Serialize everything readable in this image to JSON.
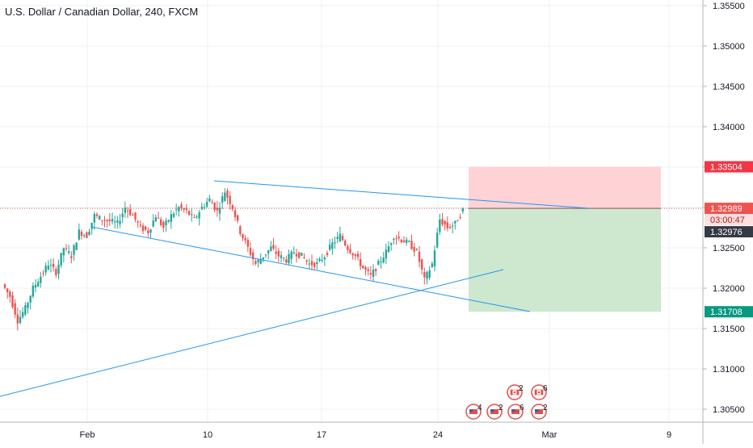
{
  "header": {
    "symbol_title": "U.S. Dollar / Canadian Dollar, 240, FXCM"
  },
  "colors": {
    "grid": "#eef0f3",
    "bull": "#26a69a",
    "bear": "#ef5350",
    "trendline": "#2196f3",
    "stop_zone": "#ffcdd2",
    "target_zone": "#c8e6c9",
    "stop_label": "#f23645",
    "target_label": "#089981",
    "price_label": "#ef5350",
    "last_label": "#363a45"
  },
  "chart_data": {
    "type": "candlestick",
    "title": "U.S. Dollar / Canadian Dollar, 240, FXCM",
    "x_ticks": [
      "Feb",
      "10",
      "17",
      "24",
      "Mar",
      "9"
    ],
    "y_ticks": [
      "1.35500",
      "1.35000",
      "1.34500",
      "1.34000",
      "1.33500",
      "1.33000",
      "1.32500",
      "1.32000",
      "1.31500",
      "1.31000",
      "1.30500"
    ],
    "ylim": [
      1.3032,
      1.356
    ],
    "grid": true,
    "price_labels": {
      "stop": "1.33504",
      "current": "1.32989",
      "countdown": "03:00:47",
      "last": "1.32976",
      "target": "1.31708"
    },
    "position": {
      "type": "short",
      "entry": 1.32989,
      "stop": 1.33504,
      "target": 1.31708
    },
    "price_path": [
      1.3205,
      1.319,
      1.316,
      1.3175,
      1.32,
      1.3215,
      1.323,
      1.322,
      1.325,
      1.324,
      1.327,
      1.3265,
      1.329,
      1.3285,
      1.3283,
      1.328,
      1.33,
      1.329,
      1.3275,
      1.327,
      1.329,
      1.3275,
      1.329,
      1.33,
      1.3295,
      1.3285,
      1.33,
      1.331,
      1.3295,
      1.332,
      1.33,
      1.327,
      1.325,
      1.323,
      1.324,
      1.325,
      1.324,
      1.3235,
      1.3245,
      1.324,
      1.323,
      1.323,
      1.324,
      1.3255,
      1.3265,
      1.325,
      1.324,
      1.3225,
      1.3215,
      1.323,
      1.3245,
      1.3265,
      1.326,
      1.3255,
      1.3245,
      1.321,
      1.323,
      1.3285,
      1.3275,
      1.328,
      1.3297
    ],
    "calendar_events": {
      "row1": [
        "2",
        "6"
      ],
      "row2": [
        "4",
        "2",
        "6",
        "2"
      ]
    }
  }
}
